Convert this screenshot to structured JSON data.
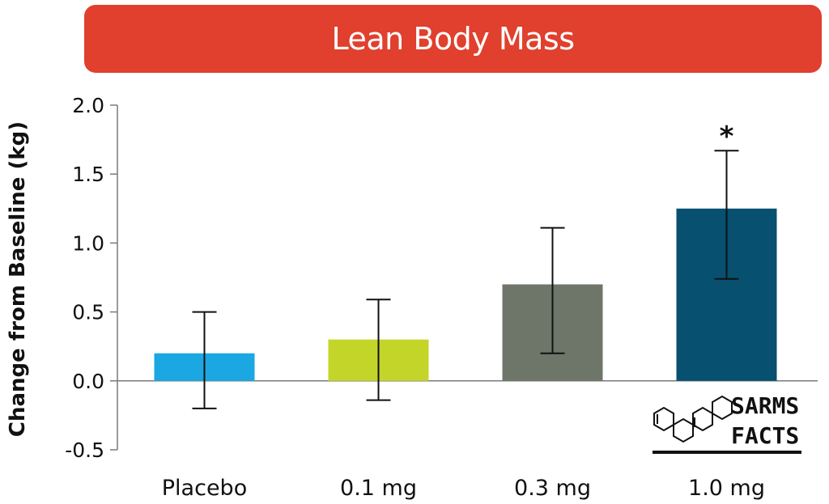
{
  "chart_data": {
    "type": "bar",
    "title": "Lean Body Mass",
    "ylabel": "Change from Baseline (kg)",
    "xlabel": "",
    "categories": [
      "Placebo",
      "0.1 mg",
      "0.3 mg",
      "1.0 mg"
    ],
    "values": [
      0.2,
      0.3,
      0.7,
      1.25
    ],
    "error_low": [
      -0.2,
      -0.14,
      0.2,
      0.74
    ],
    "error_high": [
      0.5,
      0.59,
      1.11,
      1.67
    ],
    "colors": [
      "#1aa7e2",
      "#c4d52a",
      "#6e7569",
      "#075070"
    ],
    "ylim": [
      -0.5,
      2.0
    ],
    "yticks": [
      -0.5,
      0.0,
      0.5,
      1.0,
      1.5,
      2.0
    ],
    "ytick_labels": [
      "-0.5",
      "0.0",
      "0.5",
      "1.0",
      "1.5",
      "2.0"
    ],
    "annotations": [
      {
        "category": "1.0 mg",
        "text": "*"
      }
    ],
    "grid": false,
    "legend": "none"
  },
  "logo": {
    "line1": "SARMS",
    "line2": "FACTS",
    "icon": "steroid-ring-icon"
  },
  "banner_color": "#e0402d"
}
